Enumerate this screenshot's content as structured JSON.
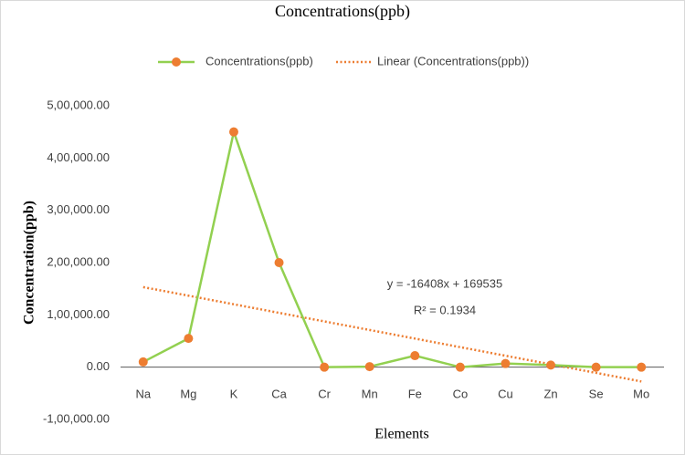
{
  "chart_data": {
    "type": "line",
    "title": "Concentrations(ppb)",
    "x_label": "Elements",
    "y_label": "Concentration(ppb)",
    "categories": [
      "Na",
      "Mg",
      "K",
      "Ca",
      "Cr",
      "Mn",
      "Fe",
      "Co",
      "Cu",
      "Zn",
      "Se",
      "Mo"
    ],
    "series": [
      {
        "name": "Concentrations(ppb)",
        "color": "#92D050",
        "marker_color": "#ED7D31",
        "style": "solid",
        "values": [
          10000,
          55000,
          450000,
          200000,
          0,
          1000,
          22000,
          0,
          7000,
          4000,
          0,
          0
        ]
      },
      {
        "name": "Linear (Concentrations(ppb))",
        "color": "#ED7D31",
        "style": "dotted",
        "values": [
          153127,
          136719,
          120311,
          103903,
          87495,
          71087,
          54679,
          38271,
          21863,
          5455,
          -10953,
          -27361
        ]
      }
    ],
    "annotations": [
      "y = -16408x + 169535",
      "R² = 0.1934"
    ],
    "ylim": [
      -100000,
      500000
    ],
    "yticks": [
      {
        "value": -100000,
        "label": "-1,00,000.00"
      },
      {
        "value": 0,
        "label": "0.00"
      },
      {
        "value": 100000,
        "label": "1,00,000.00"
      },
      {
        "value": 200000,
        "label": "2,00,000.00"
      },
      {
        "value": 300000,
        "label": "3,00,000.00"
      },
      {
        "value": 400000,
        "label": "4,00,000.00"
      },
      {
        "value": 500000,
        "label": "5,00,000.00"
      }
    ],
    "grid": false,
    "legend": "top"
  }
}
